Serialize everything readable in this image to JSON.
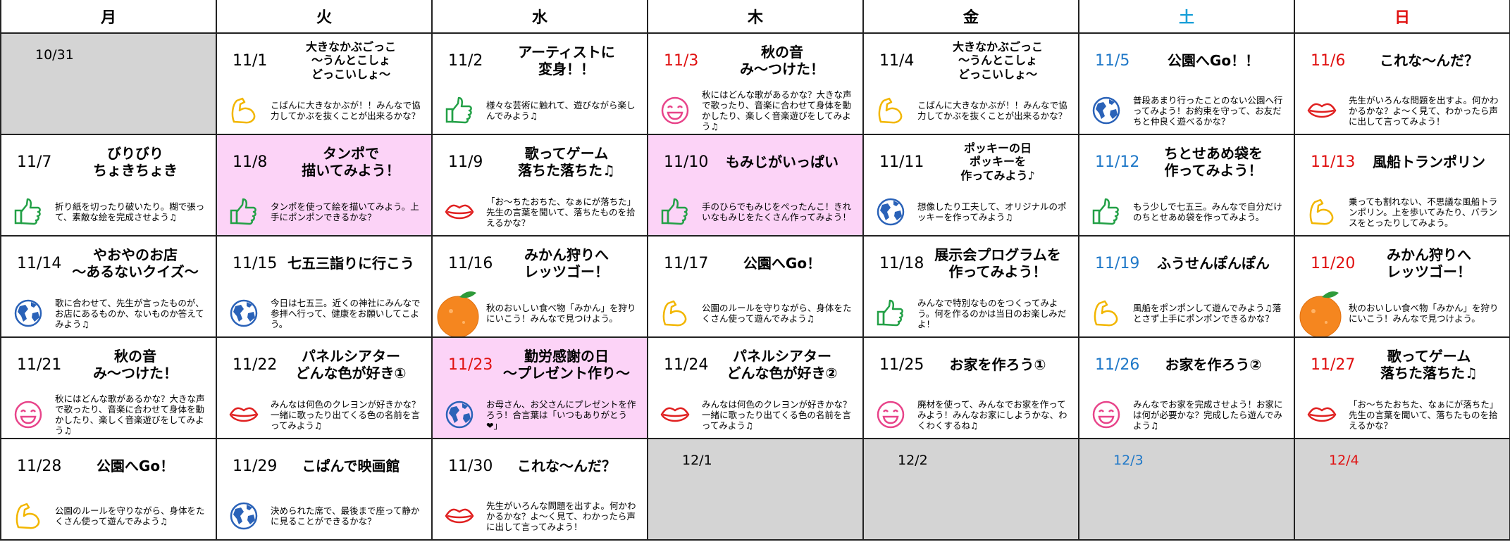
{
  "header": {
    "days": [
      "月",
      "火",
      "水",
      "木",
      "金",
      "土",
      "日"
    ]
  },
  "weeks": [
    [
      {
        "date": "10/31"
      },
      {
        "date": "11/1",
        "title": [
          "大きなかぶごっこ",
          "～うんとこしょ",
          "どっこいしょ～"
        ],
        "description": "こばんに大きなかぶが！！みんなで協力してかぶを抜くことが出来るかな？"
      },
      {
        "date": "11/2",
        "title": [
          "アーティストに",
          "変身！！"
        ],
        "description": "様々な芸術に触れて、遊びながら楽しんでみよう♫"
      },
      {
        "date": "11/3",
        "title": [
          "秋の音",
          "み～つけた！"
        ],
        "description": "秋にはどんな歌があるかな？大きな声で歌ったり、音楽に合わせて身体を動かしたり、楽しく音楽遊びをしてみよう♫"
      },
      {
        "date": "11/4",
        "title": [
          "大きなかぶごっこ",
          "～うんとこしょ",
          "どっこいしょ～"
        ],
        "description": "こばんに大きなかぶが！！みんなで協力してかぶを抜くことが出来るかな？"
      },
      {
        "date": "11/5",
        "title": [
          "公園へGo！！"
        ],
        "description": "普段あまり行ったことのない公園へ行ってみよう！お約束を守って、お友だちと仲良く遊べるかな？"
      },
      {
        "date": "11/6",
        "title": [
          "これな～んだ？"
        ],
        "description": "先生がいろんな問題を出すよ。何かわかるかな？よ～く見て、わかったら声に出して言ってみよう！"
      }
    ],
    [
      {
        "date": "11/7",
        "title": [
          "びりびり",
          "ちょきちょき"
        ],
        "description": "折り紙を切ったり破いたり。糊で張って、素敵な絵を完成させよう♫"
      },
      {
        "date": "11/8",
        "title": [
          "タンポで",
          "描いてみよう！"
        ],
        "description": "タンポを使って絵を描いてみよう。上手にポンポンできるかな？"
      },
      {
        "date": "11/9",
        "title": [
          "歌ってゲーム",
          "落ちた落ちた♫"
        ],
        "description": "「お～ちたおちた、なぁにが落ちた」先生の言葉を聞いて、落ちたものを拾えるかな？"
      },
      {
        "date": "11/10",
        "title": [
          "もみじがいっぱい"
        ],
        "description": "手のひらでもみじをぺったんこ！きれいなもみじをたくさん作ってみよう！"
      },
      {
        "date": "11/11",
        "title": [
          "ポッキーの日",
          "ポッキーを",
          "作ってみよう♪"
        ],
        "description": "想像したり工夫して、オリジナルのポッキーを作ってみよう♫"
      },
      {
        "date": "11/12",
        "title": [
          "ちとせあめ袋を",
          "作ってみよう！"
        ],
        "description": "もう少しで七五三。みんなで自分だけのちとせあめ袋を作ってみよう。"
      },
      {
        "date": "11/13",
        "title": [
          "風船トランポリン"
        ],
        "description": "乗っても割れない、不思議な風船トランポリン。上を歩いてみたり、バランスをとったりしてみよう。"
      }
    ],
    [
      {
        "date": "11/14",
        "title": [
          "やおやのお店",
          "～あるないクイズ～"
        ],
        "description": "歌に合わせて、先生が言ったものが、お店にあるものか、ないものか答えてみよう♫"
      },
      {
        "date": "11/15",
        "title": [
          "七五三詣りに行こう"
        ],
        "description": "今日は七五三。近くの神社にみんなで参拝へ行って、健康をお願いしてこよう。"
      },
      {
        "date": "11/16",
        "title": [
          "みかん狩りへ",
          "レッツゴー！"
        ],
        "description": "秋のおいしい食べ物「みかん」を狩りにいこう！みんなで見つけよう。"
      },
      {
        "date": "11/17",
        "title": [
          "公園へGo！"
        ],
        "description": "公園のルールを守りながら、身体をたくさん使って遊んでみよう♫"
      },
      {
        "date": "11/18",
        "title": [
          "展示会プログラムを",
          "作ってみよう！"
        ],
        "description": "みんなで特別なものをつくってみよう。何を作るのかは当日のお楽しみだよ！"
      },
      {
        "date": "11/19",
        "title": [
          "ふうせんぽんぽん"
        ],
        "description": "風船をポンポンして遊んでみよう♫落とさず上手にポンポンできるかな？"
      },
      {
        "date": "11/20",
        "title": [
          "みかん狩りへ",
          "レッツゴー！"
        ],
        "description": "秋のおいしい食べ物「みかん」を狩りにいこう！みんなで見つけよう。"
      }
    ],
    [
      {
        "date": "11/21",
        "title": [
          "秋の音",
          "み～つけた！"
        ],
        "description": "秋にはどんな歌があるかな？大きな声で歌ったり、音楽に合わせて身体を動かしたり、楽しく音楽遊びをしてみよう♫"
      },
      {
        "date": "11/22",
        "title": [
          "パネルシアター",
          "どんな色が好き①"
        ],
        "description": "みんなは何色のクレヨンが好きかな？一緒に歌ったり出てくる色の名前を言ってみよう♫"
      },
      {
        "date": "11/23",
        "title": [
          "勤労感謝の日",
          "～プレゼント作り～"
        ],
        "description": "お母さん、お父さんにプレゼントを作ろう！合言葉は「いつもありがとう❤」"
      },
      {
        "date": "11/24",
        "title": [
          "パネルシアター",
          "どんな色が好き②"
        ],
        "description": "みんなは何色のクレヨンが好きかな？一緒に歌ったり出てくる色の名前を言ってみよう♫"
      },
      {
        "date": "11/25",
        "title": [
          "お家を作ろう①"
        ],
        "description": "廃材を使って、みんなでお家を作ってみよう！みんなお家にしようかな、わくわくするね♫"
      },
      {
        "date": "11/26",
        "title": [
          "お家を作ろう②"
        ],
        "description": "みんなでお家を完成させよう！お家には何が必要かな？完成したら遊んでみよう♫"
      },
      {
        "date": "11/27",
        "title": [
          "歌ってゲーム",
          "落ちた落ちた♫"
        ],
        "description": "「お～ちたおちた、なぁにが落ちた」先生の言葉を聞いて、落ちたものを拾えるかな？"
      }
    ],
    [
      {
        "date": "11/28",
        "title": [
          "公園へGo！"
        ],
        "description": "公園のルールを守りながら、身体をたくさん使って遊んでみよう♫"
      },
      {
        "date": "11/29",
        "title": [
          "こぱんで映画館"
        ],
        "description": "決められた席で、最後まで座って静かに見ることができるかな？"
      },
      {
        "date": "11/30",
        "title": [
          "これな～んだ？"
        ],
        "description": "先生がいろんな問題を出すよ。何かわかるかな？よ～く見て、わかったら声に出して言ってみよう！"
      },
      {
        "date": "12/1"
      },
      {
        "date": "12/2"
      },
      {
        "date": "12/3"
      },
      {
        "date": "12/4"
      }
    ]
  ]
}
